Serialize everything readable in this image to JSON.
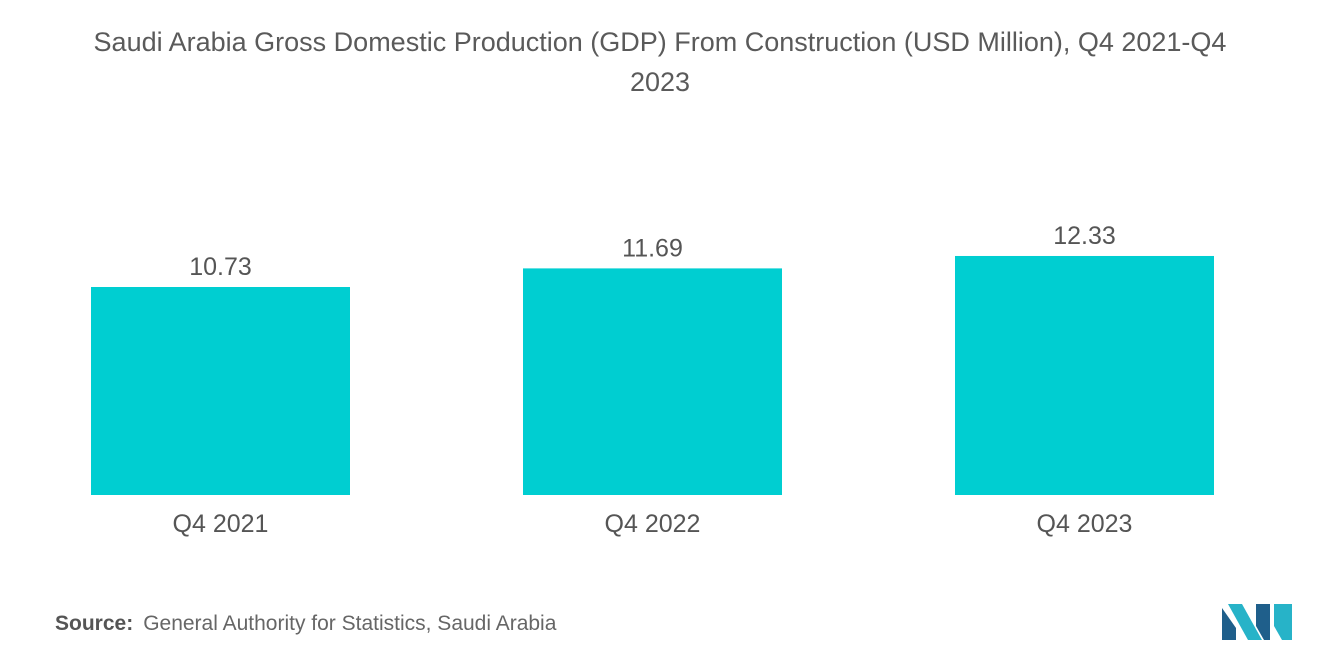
{
  "title": "Saudi Arabia Gross Domestic Production (GDP) From Construction (USD Million), Q4 2021-Q4 2023",
  "source": {
    "label": "Source:",
    "text": "General Authority for Statistics, Saudi Arabia"
  },
  "colors": {
    "bar": "#00CED1",
    "text": "#555555",
    "logo_dark": "#1f5f8b",
    "logo_light": "#27b3c8"
  },
  "logo_icon": "mordor-intelligence-logo-icon",
  "chart_data": {
    "type": "bar",
    "title": "Saudi Arabia Gross Domestic Production (GDP) From Construction (USD Million), Q4 2021-Q4 2023",
    "categories": [
      "Q4 2021",
      "Q4 2022",
      "Q4 2023"
    ],
    "values": [
      10.73,
      11.69,
      12.33
    ],
    "value_labels": [
      "10.73",
      "11.69",
      "12.33"
    ],
    "xlabel": "",
    "ylabel": "",
    "grid": false,
    "legend": "none"
  }
}
